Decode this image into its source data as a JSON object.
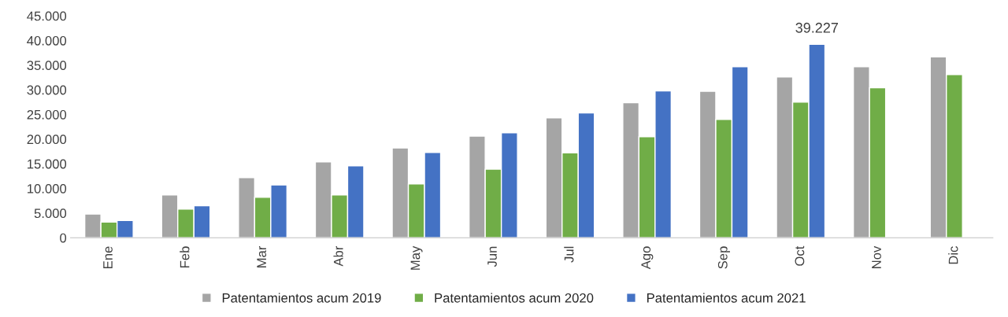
{
  "chart_data": {
    "type": "bar",
    "categories": [
      "Ene",
      "Feb",
      "Mar",
      "Abr",
      "May",
      "Jun",
      "Jul",
      "Ago",
      "Sep",
      "Oct",
      "Nov",
      "Dic"
    ],
    "series": [
      {
        "name": "Patentamientos acum 2019",
        "color": "#a5a5a5",
        "values": [
          4800,
          8700,
          12200,
          15400,
          18200,
          20600,
          24300,
          27400,
          29700,
          32600,
          34700,
          36700
        ]
      },
      {
        "name": "Patentamientos acum 2020",
        "color": "#70ad47",
        "values": [
          3200,
          5800,
          8200,
          8700,
          10900,
          13900,
          17200,
          20500,
          24000,
          27500,
          30400,
          33100
        ]
      },
      {
        "name": "Patentamientos acum 2021",
        "color": "#4472c4",
        "values": [
          3500,
          6500,
          10700,
          14600,
          17300,
          21300,
          25300,
          29800,
          34700,
          39227,
          null,
          null
        ],
        "value_labels": [
          null,
          null,
          null,
          null,
          null,
          null,
          null,
          null,
          null,
          "39.227",
          null,
          null
        ]
      }
    ],
    "ylim": [
      0,
      45000
    ],
    "yticks": [
      {
        "value": 0,
        "label": "0"
      },
      {
        "value": 5000,
        "label": "5.000"
      },
      {
        "value": 10000,
        "label": "10.000"
      },
      {
        "value": 15000,
        "label": "15.000"
      },
      {
        "value": 20000,
        "label": "20.000"
      },
      {
        "value": 25000,
        "label": "25.000"
      },
      {
        "value": 30000,
        "label": "30.000"
      },
      {
        "value": 35000,
        "label": "35.000"
      },
      {
        "value": 40000,
        "label": "40.000"
      },
      {
        "value": 45000,
        "label": "45.000"
      }
    ],
    "legend": "bottom",
    "grid": false
  }
}
